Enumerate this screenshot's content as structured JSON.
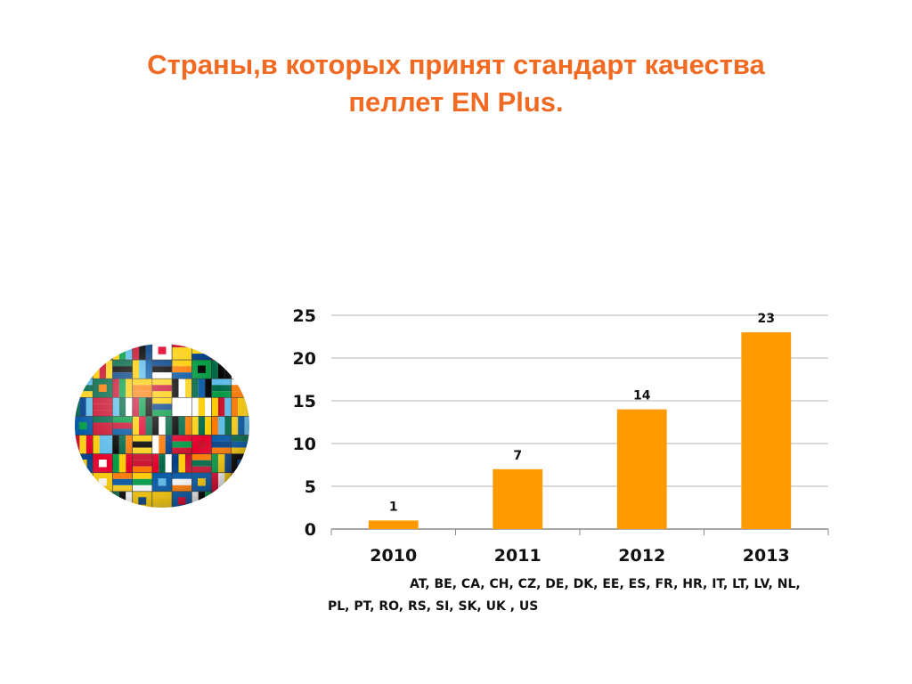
{
  "slide": {
    "title_line_1": "Страны,в которых принят стандарт качества",
    "title_line_2": "пеллет EN Plus.",
    "accent_color": "#f26a22",
    "illustration_icon": "flag-globe-icon"
  },
  "chart_data": {
    "type": "bar",
    "categories": [
      "2010",
      "2011",
      "2012",
      "2013"
    ],
    "values": [
      1,
      7,
      14,
      23
    ],
    "data_labels": [
      "1",
      "7",
      "14",
      "23"
    ],
    "title": "",
    "xlabel": "",
    "ylabel": "",
    "ylim": [
      0,
      25
    ],
    "yticks": [
      0,
      5,
      10,
      15,
      20,
      25
    ],
    "ytick_labels": [
      "0",
      "5",
      "10",
      "15",
      "20",
      "25"
    ],
    "grid": true,
    "bar_color": "#ff9900",
    "legend": "none"
  },
  "notes": {
    "codes_line_1": "AT, BE, CA, CH, CZ, DE, DK, EE, ES, FR, HR, IT, LT, LV, NL,",
    "codes_line_2": "PL, PT, RO, RS, SI, SK, UK , US"
  }
}
